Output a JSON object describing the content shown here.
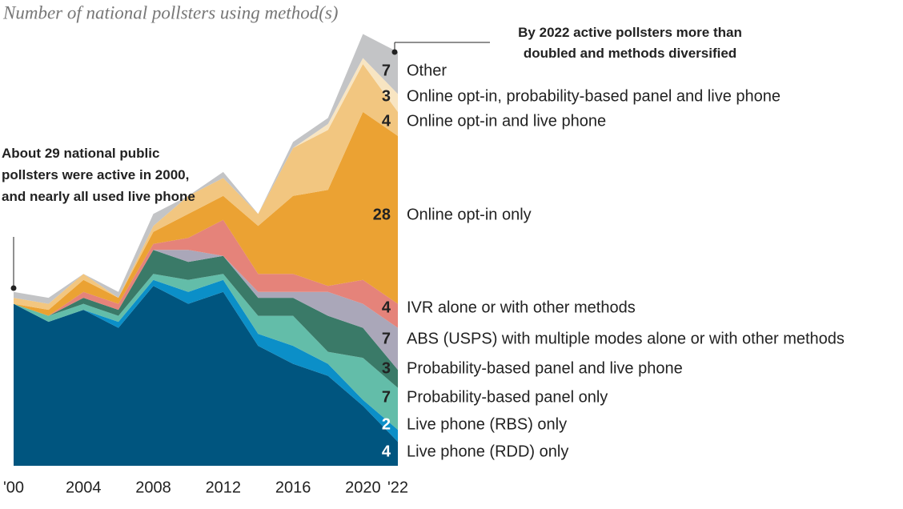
{
  "chart_data": {
    "type": "stacked-area",
    "title": "Number of national pollsters using method(s)",
    "x": [
      2000,
      2002,
      2004,
      2006,
      2008,
      2010,
      2012,
      2014,
      2016,
      2018,
      2020,
      2022
    ],
    "xlim": [
      2000,
      2022
    ],
    "xticks": [
      {
        "value": 2000,
        "label": "'00"
      },
      2004,
      2008,
      2012,
      2016,
      2020,
      {
        "value": 2022,
        "label": "'22"
      }
    ],
    "ylim": [
      0,
      75
    ],
    "series": [
      {
        "name": "Live phone (RDD) only",
        "color": "#00557f",
        "values": [
          27,
          24,
          26,
          23,
          30,
          27,
          29,
          20,
          17,
          15,
          10,
          4
        ]
      },
      {
        "name": "Live phone (RBS) only",
        "color": "#0b8fc8",
        "values": [
          0,
          0,
          0,
          1,
          1,
          2,
          2,
          2,
          3,
          2,
          1,
          2
        ]
      },
      {
        "name": "Probability-based panel only",
        "color": "#63bda9",
        "values": [
          0,
          1,
          1,
          1,
          1,
          2,
          1,
          3,
          5,
          2,
          7,
          7
        ]
      },
      {
        "name": "Probability-based panel and live phone",
        "color": "#3a7a68",
        "values": [
          0,
          0,
          1,
          1,
          4,
          3,
          3,
          3,
          3,
          6,
          5,
          3
        ]
      },
      {
        "name": "ABS (USPS) with multiple modes alone or with other methods",
        "color": "#aaa7b9",
        "values": [
          0,
          0,
          0,
          0,
          0,
          2,
          0,
          1,
          1,
          4,
          4,
          7
        ]
      },
      {
        "name": "IVR alone or with other methods",
        "color": "#e5837a",
        "values": [
          0,
          0,
          1,
          1,
          1,
          2,
          6,
          3,
          3,
          1,
          4,
          4
        ]
      },
      {
        "name": "Online opt-in only",
        "color": "#eba233",
        "values": [
          0,
          1,
          2,
          1,
          2,
          4,
          4,
          8,
          13,
          16,
          28,
          28
        ]
      },
      {
        "name": "Online opt-in and live phone",
        "color": "#f2c680",
        "values": [
          1,
          1,
          1,
          0,
          1,
          3,
          3,
          2,
          8,
          10,
          8,
          4
        ]
      },
      {
        "name": "Online opt-in, probability-based panel and live phone",
        "color": "#f8e5c2",
        "values": [
          0,
          0,
          0,
          0,
          0,
          0,
          0,
          0,
          0,
          1,
          1,
          3
        ]
      },
      {
        "name": "Other",
        "color": "#c3c4c6",
        "values": [
          1,
          1,
          0,
          1,
          2,
          0,
          1,
          0,
          1,
          1,
          4,
          7
        ]
      }
    ],
    "annotations": [
      "By 2022 active pollsters more than doubled and methods diversified",
      "About 29 national public pollsters were active in 2000, and nearly all used live phone"
    ]
  }
}
